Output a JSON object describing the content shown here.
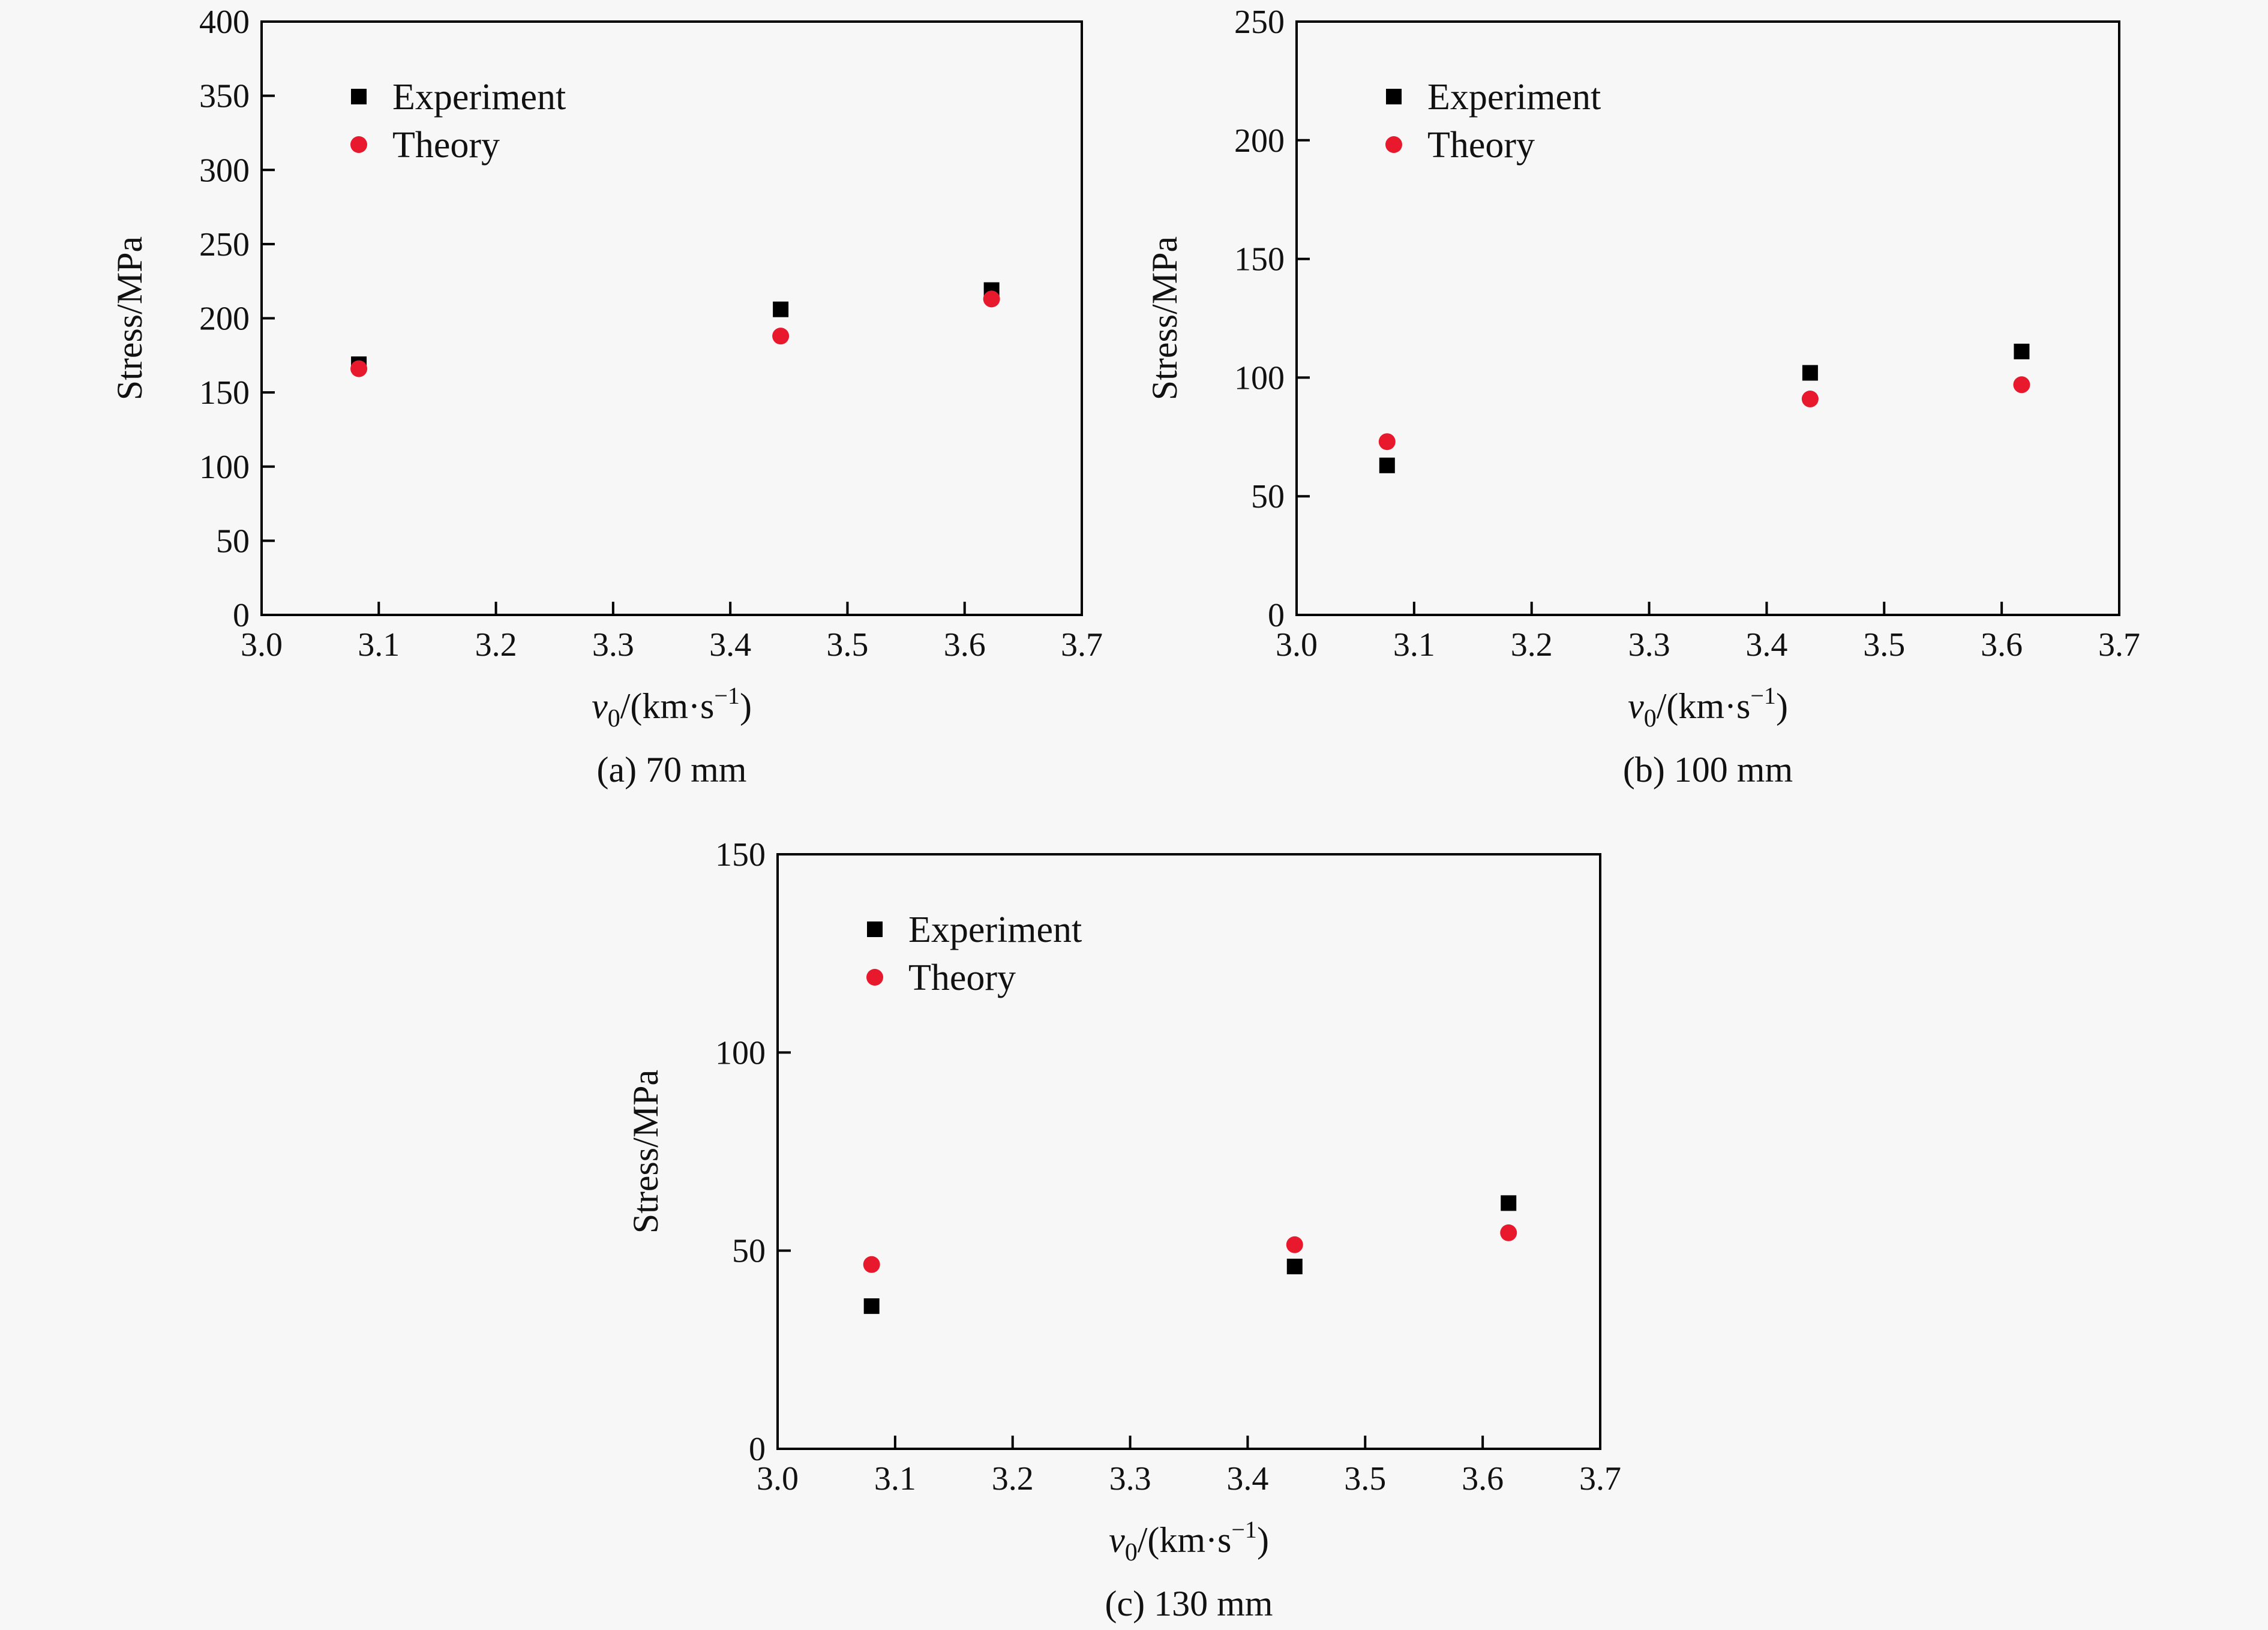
{
  "chart_data": [
    {
      "type": "scatter",
      "caption": "(a) 70 mm",
      "xlabel_main": "v",
      "xlabel_sub": "0",
      "xlabel_rest": "/(km·s",
      "xlabel_sup": "−1",
      "xlabel_close": ")",
      "ylabel": "Stress/MPa",
      "xlim": [
        3.0,
        3.7
      ],
      "ylim": [
        0,
        400
      ],
      "xticks": [
        "3.0",
        "3.1",
        "3.2",
        "3.3",
        "3.4",
        "3.5",
        "3.6",
        "3.7"
      ],
      "yticks": [
        "0",
        "50",
        "100",
        "150",
        "200",
        "250",
        "300",
        "350",
        "400"
      ],
      "legend_position": "top-left",
      "series": [
        {
          "name": "Experiment",
          "marker": "square",
          "color": "#000000",
          "x": [
            3.083,
            3.443,
            3.623
          ],
          "y": [
            169,
            206,
            219
          ]
        },
        {
          "name": "Theory",
          "marker": "circle",
          "color": "#e8192c",
          "x": [
            3.083,
            3.443,
            3.623
          ],
          "y": [
            166,
            188,
            213
          ]
        }
      ]
    },
    {
      "type": "scatter",
      "caption": "(b) 100 mm",
      "xlabel_main": "v",
      "xlabel_sub": "0",
      "xlabel_rest": "/(km·s",
      "xlabel_sup": "−1",
      "xlabel_close": ")",
      "ylabel": "Stress/MPa",
      "xlim": [
        3.0,
        3.7
      ],
      "ylim": [
        0,
        250
      ],
      "xticks": [
        "3.0",
        "3.1",
        "3.2",
        "3.3",
        "3.4",
        "3.5",
        "3.6",
        "3.7"
      ],
      "yticks": [
        "0",
        "50",
        "100",
        "150",
        "200",
        "250"
      ],
      "legend_position": "top-left",
      "series": [
        {
          "name": "Experiment",
          "marker": "square",
          "color": "#000000",
          "x": [
            3.077,
            3.437,
            3.617
          ],
          "y": [
            63,
            102,
            111
          ]
        },
        {
          "name": "Theory",
          "marker": "circle",
          "color": "#e8192c",
          "x": [
            3.077,
            3.437,
            3.617
          ],
          "y": [
            73,
            91,
            97
          ]
        }
      ]
    },
    {
      "type": "scatter",
      "caption": "(c) 130 mm",
      "xlabel_main": "v",
      "xlabel_sub": "0",
      "xlabel_rest": "/(km·s",
      "xlabel_sup": "−1",
      "xlabel_close": ")",
      "ylabel": "Stress/MPa",
      "xlim": [
        3.0,
        3.7
      ],
      "ylim": [
        0,
        150
      ],
      "xticks": [
        "3.0",
        "3.1",
        "3.2",
        "3.3",
        "3.4",
        "3.5",
        "3.6",
        "3.7"
      ],
      "yticks": [
        "0",
        "50",
        "100",
        "150"
      ],
      "legend_position": "top-left",
      "series": [
        {
          "name": "Experiment",
          "marker": "square",
          "color": "#000000",
          "x": [
            3.08,
            3.44,
            3.622
          ],
          "y": [
            36,
            46,
            62
          ]
        },
        {
          "name": "Theory",
          "marker": "circle",
          "color": "#e8192c",
          "x": [
            3.08,
            3.44,
            3.622
          ],
          "y": [
            46.5,
            51.5,
            54.5
          ]
        }
      ]
    }
  ]
}
